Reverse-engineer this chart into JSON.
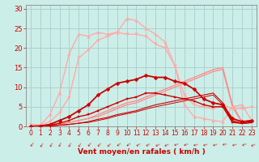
{
  "xlabel": "Vent moyen/en rafales ( km/h )",
  "bg_color": "#cceee8",
  "grid_color": "#aacccc",
  "text_color": "#cc0000",
  "axis_color": "#888888",
  "xlim": [
    -0.5,
    23.5
  ],
  "ylim": [
    0,
    31
  ],
  "xticks": [
    0,
    1,
    2,
    3,
    4,
    5,
    6,
    7,
    8,
    9,
    10,
    11,
    12,
    13,
    14,
    15,
    16,
    17,
    18,
    19,
    20,
    21,
    22,
    23
  ],
  "yticks": [
    0,
    5,
    10,
    15,
    20,
    25,
    30
  ],
  "series": [
    {
      "name": "light_pink_up",
      "x": [
        0,
        1,
        2,
        3,
        4,
        5,
        6,
        7,
        8,
        9,
        10,
        11,
        12,
        13,
        14,
        15,
        16,
        17,
        18,
        19,
        20,
        21,
        22,
        23
      ],
      "y": [
        0.5,
        0.3,
        3.0,
        8.5,
        18.5,
        23.5,
        23.0,
        24.0,
        23.5,
        24.0,
        27.5,
        27.0,
        25.0,
        23.5,
        21.5,
        15.5,
        5.5,
        2.5,
        2.0,
        1.5,
        1.2,
        5.0,
        5.5,
        1.5
      ],
      "color": "#ffaaaa",
      "lw": 1.0,
      "marker": "^",
      "ms": 2.5,
      "zorder": 3
    },
    {
      "name": "light_pink_down",
      "x": [
        0,
        1,
        2,
        3,
        4,
        5,
        6,
        7,
        8,
        9,
        10,
        11,
        12,
        13,
        14,
        15,
        16,
        17,
        18,
        19,
        20,
        21,
        22,
        23
      ],
      "y": [
        0.5,
        0.3,
        1.2,
        3.5,
        7.5,
        17.5,
        19.5,
        22.0,
        23.0,
        24.0,
        23.5,
        23.5,
        23.0,
        21.0,
        20.0,
        15.5,
        8.0,
        5.5,
        5.0,
        4.5,
        5.5,
        4.5,
        4.5,
        5.0
      ],
      "color": "#ffaaaa",
      "lw": 1.0,
      "marker": "v",
      "ms": 2.5,
      "zorder": 3
    },
    {
      "name": "dark_red_diamond",
      "x": [
        0,
        1,
        2,
        3,
        4,
        5,
        6,
        7,
        8,
        9,
        10,
        11,
        12,
        13,
        14,
        15,
        16,
        17,
        18,
        19,
        20,
        21,
        22,
        23
      ],
      "y": [
        0.0,
        0.1,
        0.5,
        1.5,
        2.5,
        4.0,
        5.5,
        8.0,
        9.5,
        11.0,
        11.5,
        12.0,
        13.0,
        12.5,
        12.5,
        11.5,
        11.0,
        9.5,
        7.0,
        6.0,
        5.5,
        2.0,
        1.2,
        1.5
      ],
      "color": "#cc0000",
      "lw": 1.3,
      "marker": "D",
      "ms": 2.5,
      "zorder": 5
    },
    {
      "name": "dark_red_square",
      "x": [
        0,
        1,
        2,
        3,
        4,
        5,
        6,
        7,
        8,
        9,
        10,
        11,
        12,
        13,
        14,
        15,
        16,
        17,
        18,
        19,
        20,
        21,
        22,
        23
      ],
      "y": [
        0.0,
        0.0,
        0.3,
        0.8,
        1.5,
        2.5,
        3.0,
        4.0,
        5.0,
        6.0,
        7.0,
        7.5,
        8.5,
        8.5,
        8.0,
        7.5,
        7.0,
        6.5,
        5.5,
        5.0,
        5.0,
        1.0,
        0.8,
        1.2
      ],
      "color": "#cc0000",
      "lw": 1.0,
      "marker": "s",
      "ms": 2.0,
      "zorder": 5
    },
    {
      "name": "pink_line1",
      "x": [
        0,
        1,
        2,
        3,
        4,
        5,
        6,
        7,
        8,
        9,
        10,
        11,
        12,
        13,
        14,
        15,
        16,
        17,
        18,
        19,
        20,
        21,
        22,
        23
      ],
      "y": [
        0.0,
        0.0,
        0.2,
        0.5,
        1.0,
        1.5,
        2.0,
        3.0,
        4.0,
        5.0,
        6.0,
        6.5,
        7.5,
        8.5,
        9.5,
        10.5,
        11.5,
        12.5,
        13.5,
        14.5,
        15.0,
        5.5,
        1.2,
        1.5
      ],
      "color": "#ff8888",
      "lw": 0.9,
      "marker": null,
      "ms": 0,
      "zorder": 2
    },
    {
      "name": "pink_line2",
      "x": [
        0,
        1,
        2,
        3,
        4,
        5,
        6,
        7,
        8,
        9,
        10,
        11,
        12,
        13,
        14,
        15,
        16,
        17,
        18,
        19,
        20,
        21,
        22,
        23
      ],
      "y": [
        0.0,
        0.0,
        0.2,
        0.5,
        1.0,
        1.5,
        2.0,
        2.5,
        3.5,
        4.5,
        5.5,
        6.0,
        7.0,
        8.0,
        9.0,
        10.0,
        11.0,
        12.0,
        13.0,
        14.0,
        14.5,
        5.0,
        1.0,
        1.5
      ],
      "color": "#ff8888",
      "lw": 0.9,
      "marker": null,
      "ms": 0,
      "zorder": 2
    },
    {
      "name": "dark_red_line1",
      "x": [
        0,
        1,
        2,
        3,
        4,
        5,
        6,
        7,
        8,
        9,
        10,
        11,
        12,
        13,
        14,
        15,
        16,
        17,
        18,
        19,
        20,
        21,
        22,
        23
      ],
      "y": [
        0.0,
        0.0,
        0.1,
        0.3,
        0.5,
        0.8,
        1.2,
        1.8,
        2.3,
        3.0,
        3.5,
        4.0,
        4.8,
        5.5,
        6.0,
        6.5,
        7.0,
        7.5,
        8.0,
        8.5,
        6.0,
        1.5,
        0.8,
        1.0
      ],
      "color": "#cc0000",
      "lw": 0.8,
      "marker": null,
      "ms": 0,
      "zorder": 4
    },
    {
      "name": "dark_red_line2",
      "x": [
        0,
        1,
        2,
        3,
        4,
        5,
        6,
        7,
        8,
        9,
        10,
        11,
        12,
        13,
        14,
        15,
        16,
        17,
        18,
        19,
        20,
        21,
        22,
        23
      ],
      "y": [
        0.0,
        0.0,
        0.1,
        0.3,
        0.5,
        0.8,
        1.0,
        1.5,
        2.0,
        2.7,
        3.2,
        3.7,
        4.4,
        5.0,
        5.5,
        6.0,
        6.5,
        7.0,
        7.5,
        8.0,
        5.5,
        1.2,
        0.7,
        0.9
      ],
      "color": "#cc0000",
      "lw": 0.7,
      "marker": null,
      "ms": 0,
      "zorder": 4
    }
  ],
  "arrow_rotations": [
    50,
    55,
    60,
    65,
    60,
    55,
    50,
    45,
    40,
    35,
    35,
    30,
    30,
    25,
    25,
    20,
    20,
    15,
    15,
    15,
    10,
    15,
    20,
    25
  ]
}
